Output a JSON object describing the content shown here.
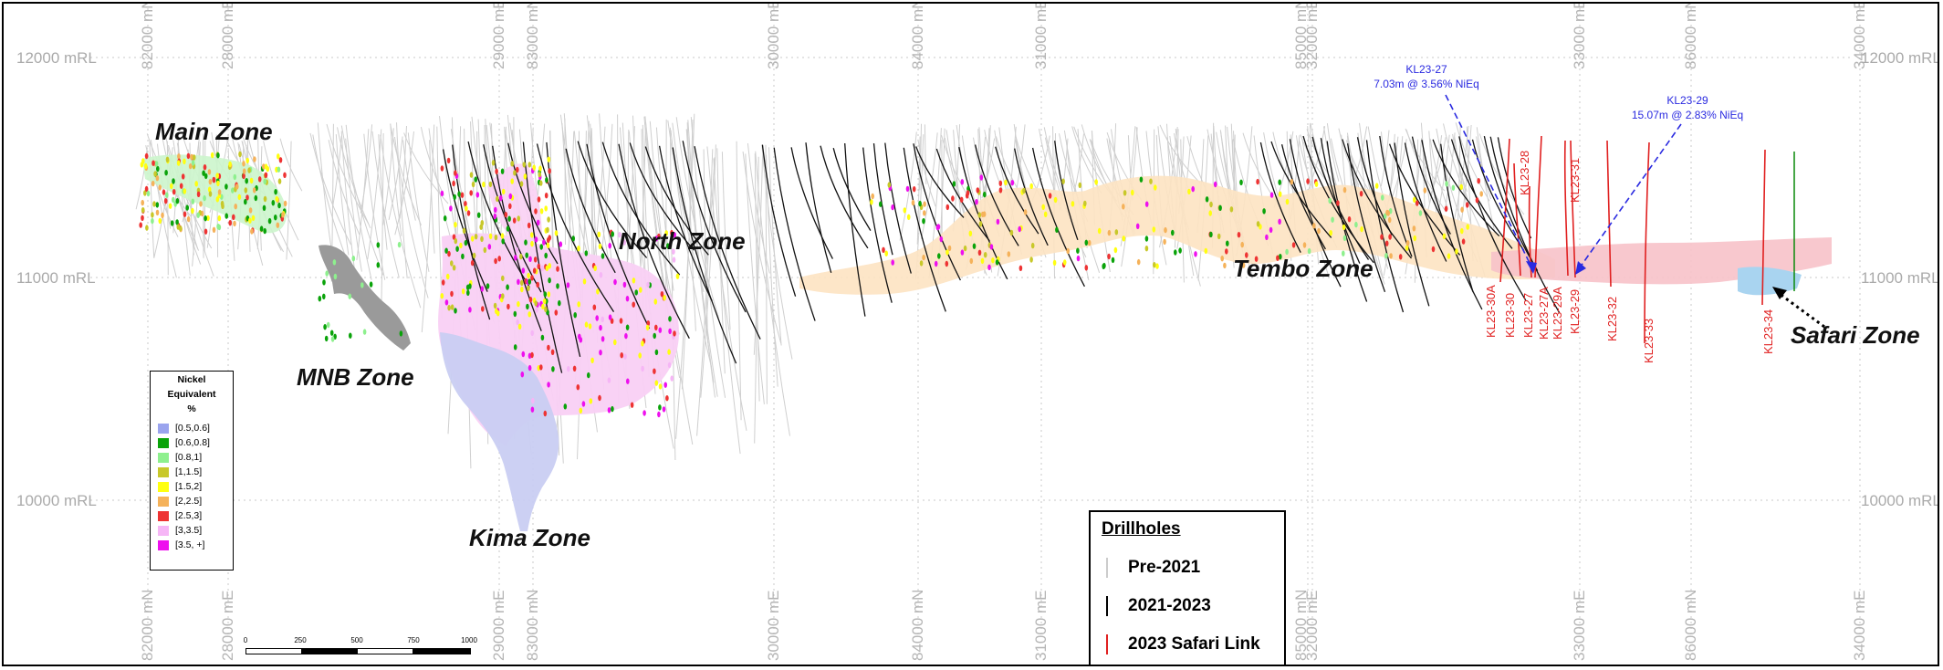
{
  "elevation_labels_left": [
    "12000 mRL",
    "11000 mRL",
    "10000 mRL"
  ],
  "elevation_labels_right": [
    "12000 mRL",
    "11000 mRL",
    "10000 mRL"
  ],
  "grid_labels": [
    "82000 mN",
    "28000 mE",
    "29000 mE",
    "83000 mN",
    "30000 mE",
    "84000 mN",
    "31000 mE",
    "85000 mN",
    "32000 mE",
    "33000 mE",
    "86000 mN",
    "34000 mE"
  ],
  "zones": {
    "main": "Main Zone",
    "mnb": "MNB Zone",
    "north": "North Zone",
    "kima": "Kima Zone",
    "tembo": "Tembo Zone",
    "safari": "Safari Zone"
  },
  "callouts": [
    {
      "line1": "KL23-27",
      "line2": "7.03m @ 3.56% NiEq"
    },
    {
      "line1": "KL23-29",
      "line2": "15.07m @ 2.83% NiEq"
    }
  ],
  "hole_labels_upper": [
    "KL23-28",
    "KL23-31"
  ],
  "hole_labels_lower": [
    "KL23-30A",
    "KL23-30",
    "KL23-27",
    "KL23-27A",
    "KL23-29A",
    "KL23-29",
    "KL23-32",
    "KL23-33",
    "KL23-34"
  ],
  "nickel_legend": {
    "title_line1": "Nickel",
    "title_line2": "Equivalent",
    "title_line3": "%",
    "items": [
      {
        "label": "[0.5,0.6]",
        "color": "#9aa4ee"
      },
      {
        "label": "[0.6,0.8]",
        "color": "#0aa30a"
      },
      {
        "label": "[0.8,1]",
        "color": "#8ef08e"
      },
      {
        "label": "[1,1.5]",
        "color": "#c8c82a"
      },
      {
        "label": "[1.5,2]",
        "color": "#ffff10"
      },
      {
        "label": "[2,2.5]",
        "color": "#f5b25a"
      },
      {
        "label": "[2.5,3]",
        "color": "#ee3333"
      },
      {
        "label": "[3,3.5]",
        "color": "#f6b6f6"
      },
      {
        "label": "[3.5, +]",
        "color": "#ee10ee"
      }
    ]
  },
  "drill_legend": {
    "title": "Drillholes",
    "items": [
      {
        "label": "Pre-2021",
        "color": "#cccccc"
      },
      {
        "label": "2021-2023",
        "color": "#000000"
      },
      {
        "label": "2023 Safari Link",
        "color": "#e02020"
      }
    ]
  },
  "scale_labels": [
    "0",
    "250",
    "500",
    "750",
    "1000"
  ],
  "colors": {
    "orebody_orange": "#fde3c2",
    "orebody_pink": "#f9d0f4",
    "orebody_blue": "#c9cdf2",
    "orebody_green": "#ccf5cc",
    "mnb_grey": "#9a9a9a",
    "safari_pink": "#f7c2c9",
    "safari_blue": "#a9d4f0"
  }
}
